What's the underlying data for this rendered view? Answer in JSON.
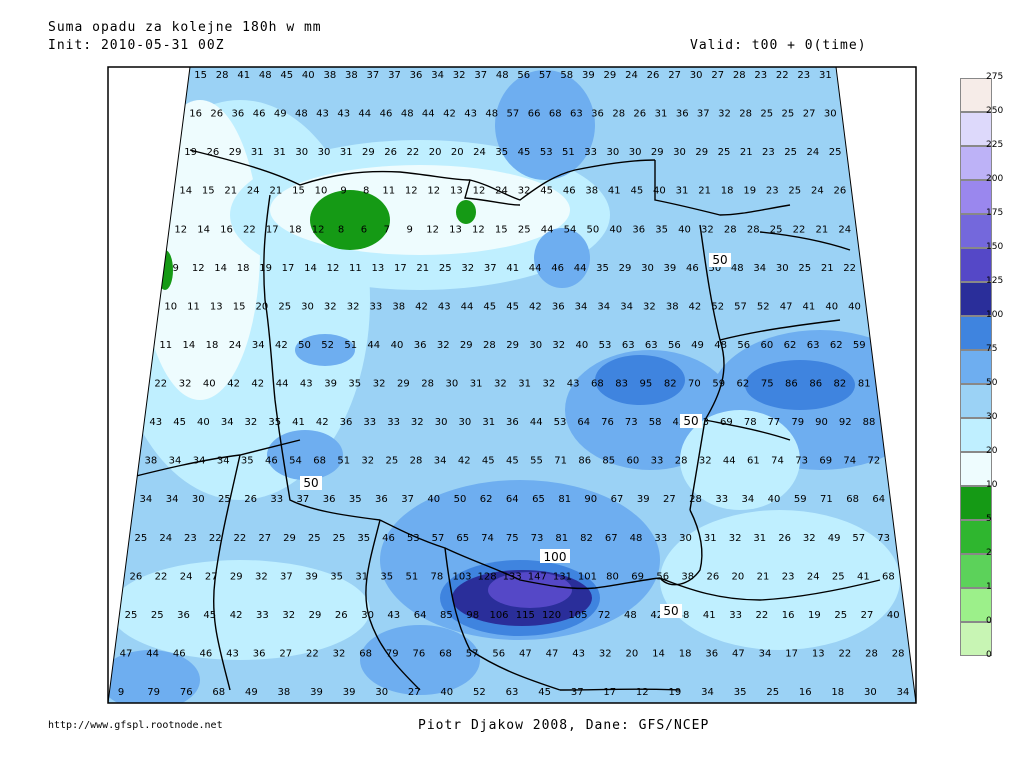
{
  "header": {
    "title": "Suma opadu za kolejne 180h w mm",
    "init": "Init: 2010-05-31 00Z",
    "valid": "Valid: t00 + 0(time)"
  },
  "footer": {
    "url": "http://www.gfspl.rootnode.net",
    "credit": "Piotr Djakow 2008, Dane: GFS/NCEP"
  },
  "legend": {
    "levels": [
      "0",
      "1",
      "2",
      "5",
      "10",
      "20",
      "30",
      "50",
      "75",
      "100",
      "125",
      "150",
      "175",
      "200",
      "225",
      "250",
      "275"
    ],
    "colors": [
      "#c8f5b4",
      "#9cf08a",
      "#5cd25a",
      "#2fb62f",
      "#159a15",
      "#eefcfe",
      "#bfefff",
      "#9bd2f5",
      "#6eaef0",
      "#3f84df",
      "#2a2e9a",
      "#5548c7",
      "#7468dc",
      "#9a87ee",
      "#bdb2f7",
      "#ddd9fb",
      "#f6ece8"
    ]
  },
  "contour_labels": [
    "50",
    "50",
    "50",
    "50",
    "100",
    "50"
  ],
  "map_values": [
    [
      "15",
      "28",
      "41",
      "48",
      "45",
      "40",
      "38",
      "38",
      "37",
      "37",
      "36",
      "34",
      "32",
      "37",
      "48",
      "56",
      "57",
      "58",
      "39",
      "29",
      "24",
      "26",
      "27",
      "30",
      "27",
      "28",
      "23",
      "22",
      "23",
      "31"
    ],
    [
      "16",
      "26",
      "36",
      "46",
      "49",
      "48",
      "43",
      "43",
      "44",
      "46",
      "48",
      "44",
      "42",
      "43",
      "48",
      "57",
      "66",
      "68",
      "63",
      "36",
      "28",
      "26",
      "31",
      "36",
      "37",
      "32",
      "28",
      "25",
      "25",
      "27",
      "30"
    ],
    [
      "19",
      "26",
      "29",
      "31",
      "31",
      "30",
      "30",
      "31",
      "29",
      "26",
      "22",
      "20",
      "20",
      "24",
      "35",
      "45",
      "53",
      "51",
      "33",
      "30",
      "30",
      "29",
      "30",
      "29",
      "25",
      "21",
      "23",
      "25",
      "24",
      "25"
    ],
    [
      "14",
      "15",
      "21",
      "24",
      "21",
      "15",
      "10",
      "9",
      "8",
      "11",
      "12",
      "12",
      "13",
      "12",
      "24",
      "32",
      "45",
      "46",
      "38",
      "41",
      "45",
      "40",
      "31",
      "21",
      "18",
      "19",
      "23",
      "25",
      "24",
      "26"
    ],
    [
      "12",
      "14",
      "16",
      "22",
      "17",
      "18",
      "12",
      "8",
      "6",
      "7",
      "9",
      "12",
      "13",
      "12",
      "15",
      "25",
      "44",
      "54",
      "50",
      "40",
      "36",
      "35",
      "40",
      "32",
      "28",
      "28",
      "25",
      "22",
      "21",
      "24"
    ],
    [
      "9",
      "12",
      "14",
      "18",
      "19",
      "17",
      "14",
      "12",
      "11",
      "13",
      "17",
      "21",
      "25",
      "32",
      "37",
      "41",
      "44",
      "46",
      "44",
      "35",
      "29",
      "30",
      "39",
      "46",
      "50",
      "48",
      "34",
      "30",
      "25",
      "21",
      "22"
    ],
    [
      "10",
      "11",
      "13",
      "15",
      "20",
      "25",
      "30",
      "32",
      "32",
      "33",
      "38",
      "42",
      "43",
      "44",
      "45",
      "45",
      "42",
      "36",
      "34",
      "34",
      "34",
      "32",
      "38",
      "42",
      "52",
      "57",
      "52",
      "47",
      "41",
      "40",
      "40"
    ],
    [
      "11",
      "14",
      "18",
      "24",
      "34",
      "42",
      "50",
      "52",
      "51",
      "44",
      "40",
      "36",
      "32",
      "29",
      "28",
      "29",
      "30",
      "32",
      "40",
      "53",
      "63",
      "63",
      "56",
      "49",
      "48",
      "56",
      "60",
      "62",
      "63",
      "62",
      "59"
    ],
    [
      "22",
      "32",
      "40",
      "42",
      "42",
      "44",
      "43",
      "39",
      "35",
      "32",
      "29",
      "28",
      "30",
      "31",
      "32",
      "31",
      "32",
      "43",
      "68",
      "83",
      "95",
      "82",
      "70",
      "59",
      "62",
      "75",
      "86",
      "86",
      "82",
      "81"
    ],
    [
      "43",
      "45",
      "40",
      "34",
      "32",
      "35",
      "41",
      "42",
      "36",
      "33",
      "33",
      "32",
      "30",
      "30",
      "31",
      "36",
      "44",
      "53",
      "64",
      "76",
      "73",
      "58",
      "45",
      "53",
      "69",
      "78",
      "77",
      "79",
      "90",
      "92",
      "88"
    ],
    [
      "38",
      "34",
      "34",
      "34",
      "35",
      "46",
      "54",
      "68",
      "51",
      "32",
      "25",
      "28",
      "34",
      "42",
      "45",
      "45",
      "55",
      "71",
      "86",
      "85",
      "60",
      "33",
      "28",
      "32",
      "44",
      "61",
      "74",
      "73",
      "69",
      "74",
      "72"
    ],
    [
      "34",
      "34",
      "30",
      "25",
      "26",
      "33",
      "37",
      "36",
      "35",
      "36",
      "37",
      "40",
      "50",
      "62",
      "64",
      "65",
      "81",
      "90",
      "67",
      "39",
      "27",
      "28",
      "33",
      "34",
      "40",
      "59",
      "71",
      "68",
      "64"
    ],
    [
      "25",
      "24",
      "23",
      "22",
      "22",
      "27",
      "29",
      "25",
      "25",
      "35",
      "46",
      "53",
      "57",
      "65",
      "74",
      "75",
      "73",
      "81",
      "82",
      "67",
      "48",
      "33",
      "30",
      "31",
      "32",
      "31",
      "26",
      "32",
      "49",
      "57",
      "73"
    ],
    [
      "26",
      "22",
      "24",
      "27",
      "29",
      "32",
      "37",
      "39",
      "35",
      "31",
      "35",
      "51",
      "78",
      "103",
      "128",
      "133",
      "147",
      "131",
      "101",
      "80",
      "69",
      "56",
      "38",
      "26",
      "20",
      "21",
      "23",
      "24",
      "25",
      "41",
      "68"
    ],
    [
      "25",
      "25",
      "36",
      "45",
      "42",
      "33",
      "32",
      "29",
      "26",
      "30",
      "43",
      "64",
      "85",
      "98",
      "106",
      "115",
      "120",
      "105",
      "72",
      "48",
      "42",
      "48",
      "41",
      "33",
      "22",
      "16",
      "19",
      "25",
      "27",
      "40"
    ],
    [
      "47",
      "44",
      "46",
      "46",
      "43",
      "36",
      "27",
      "22",
      "32",
      "68",
      "79",
      "76",
      "68",
      "57",
      "56",
      "47",
      "47",
      "43",
      "32",
      "20",
      "14",
      "18",
      "36",
      "47",
      "34",
      "17",
      "13",
      "22",
      "28",
      "28"
    ],
    [
      "9",
      "79",
      "76",
      "68",
      "49",
      "38",
      "39",
      "39",
      "30",
      "27",
      "40",
      "52",
      "63",
      "45",
      "37",
      "17",
      "12",
      "19",
      "34",
      "35",
      "25",
      "16",
      "18",
      "30",
      "34"
    ]
  ]
}
